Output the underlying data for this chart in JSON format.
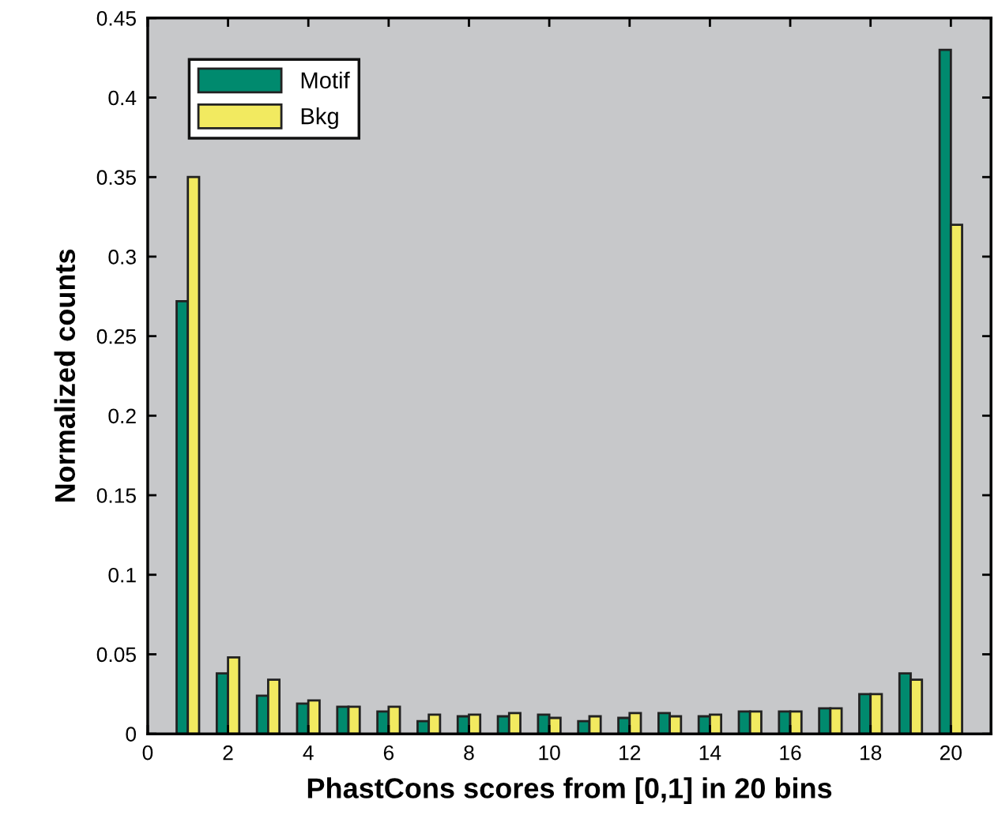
{
  "chart_data": {
    "type": "bar",
    "xlabel": "PhastCons scores from [0,1] in 20 bins",
    "ylabel": "Normalized counts",
    "x": [
      1,
      2,
      3,
      4,
      5,
      6,
      7,
      8,
      9,
      10,
      11,
      12,
      13,
      14,
      15,
      16,
      17,
      18,
      19,
      20
    ],
    "series": [
      {
        "name": "Motif",
        "color": "#008a6e",
        "values": [
          0.272,
          0.038,
          0.024,
          0.019,
          0.017,
          0.014,
          0.008,
          0.011,
          0.011,
          0.012,
          0.008,
          0.01,
          0.013,
          0.011,
          0.014,
          0.014,
          0.016,
          0.025,
          0.038,
          0.43
        ]
      },
      {
        "name": "Bkg",
        "color": "#f2ea60",
        "values": [
          0.35,
          0.048,
          0.034,
          0.021,
          0.017,
          0.017,
          0.012,
          0.012,
          0.013,
          0.01,
          0.011,
          0.013,
          0.011,
          0.012,
          0.014,
          0.014,
          0.016,
          0.025,
          0.034,
          0.32
        ]
      }
    ],
    "xlim": [
      0,
      21
    ],
    "xticks": [
      0,
      2,
      4,
      6,
      8,
      10,
      12,
      14,
      16,
      18,
      20
    ],
    "ylim": [
      0,
      0.45
    ],
    "yticks": [
      0,
      0.05,
      0.1,
      0.15,
      0.2,
      0.25,
      0.3,
      0.35,
      0.4,
      0.45
    ],
    "grid": false,
    "legend": "top left"
  }
}
